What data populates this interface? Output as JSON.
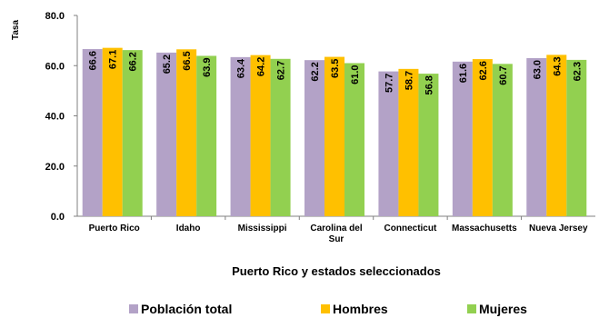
{
  "chart_data": {
    "type": "bar",
    "ylabel": "Tasa",
    "xlabel": "Puerto Rico y estados seleccionados",
    "ylim": [
      0,
      80
    ],
    "yticks": [
      "0.0",
      "20.0",
      "40.0",
      "60.0",
      "80.0"
    ],
    "categories": [
      [
        "Puerto Rico"
      ],
      [
        "Idaho"
      ],
      [
        "Mississippi"
      ],
      [
        "Carolina del",
        "Sur"
      ],
      [
        "Connecticut"
      ],
      [
        "Massachusetts"
      ],
      [
        "Nueva Jersey"
      ]
    ],
    "series": [
      {
        "name": "Población total",
        "color": "#b3a2c7",
        "values": [
          66.6,
          65.2,
          63.4,
          62.2,
          57.7,
          61.6,
          63.0
        ]
      },
      {
        "name": "Hombres",
        "color": "#ffc000",
        "values": [
          67.1,
          66.5,
          64.2,
          63.5,
          58.7,
          62.6,
          64.3
        ]
      },
      {
        "name": "Mujeres",
        "color": "#92d050",
        "values": [
          66.2,
          63.9,
          62.7,
          61.0,
          56.8,
          60.7,
          62.3
        ]
      }
    ],
    "legend_position": "bottom",
    "grid": false
  }
}
